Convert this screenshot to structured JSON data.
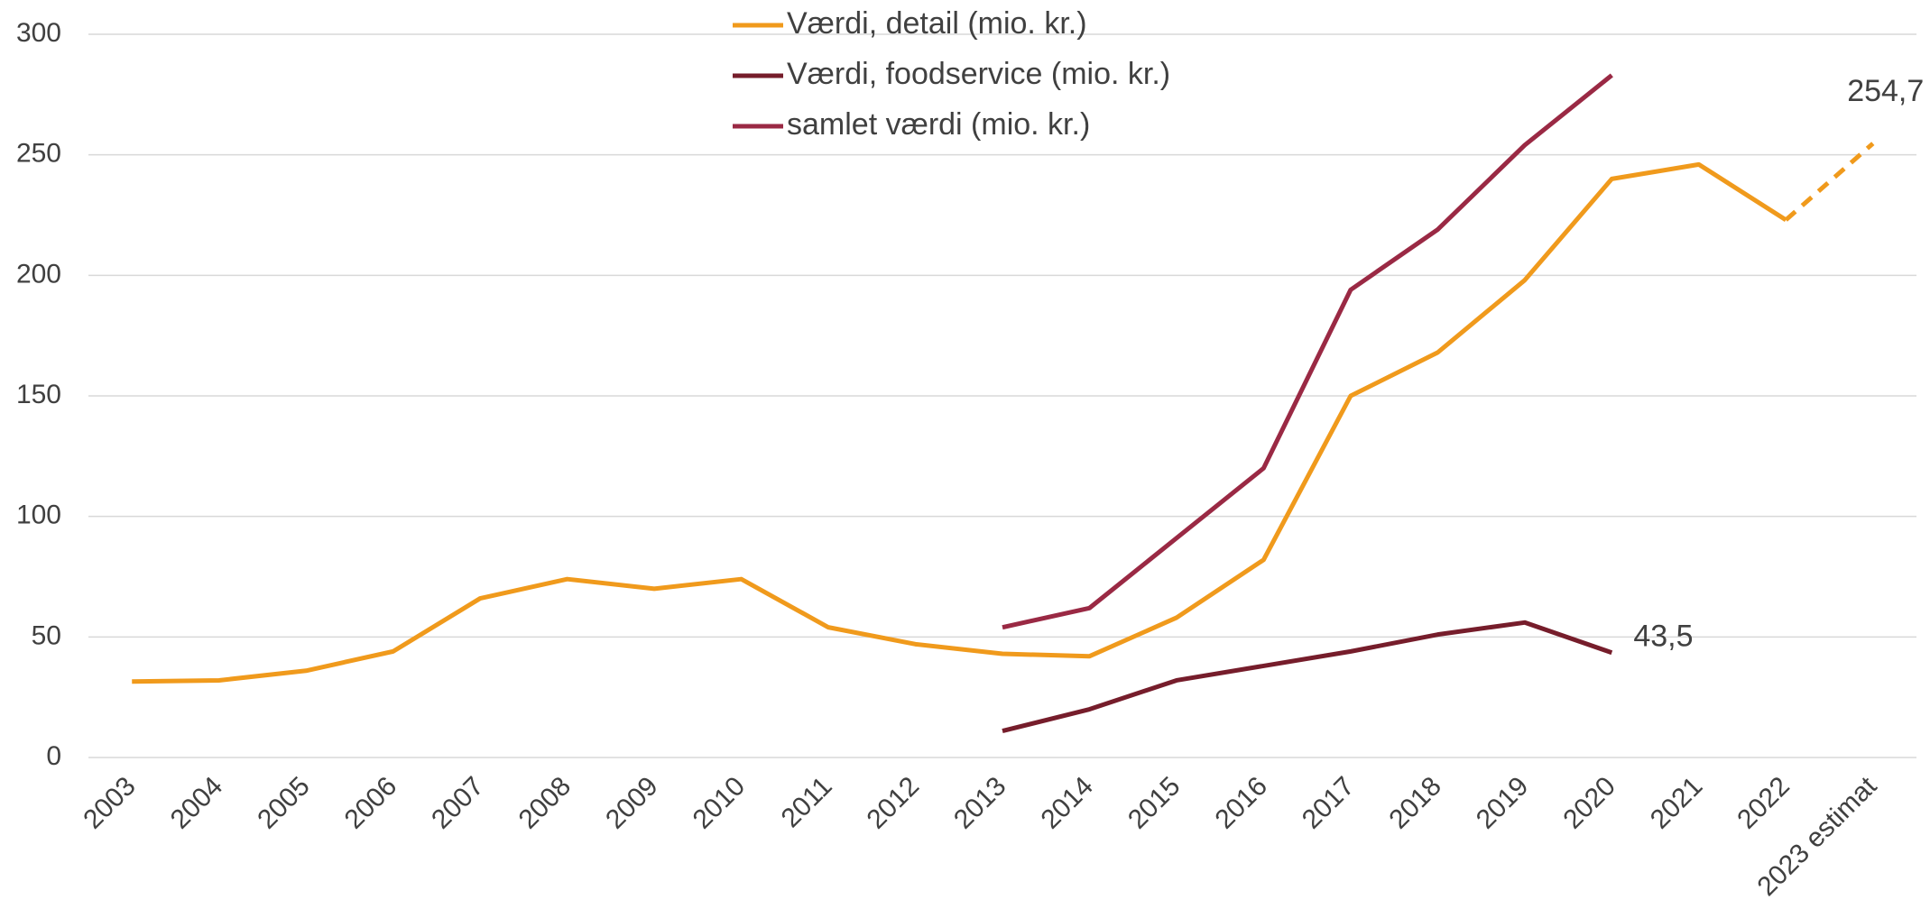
{
  "chart_data": {
    "type": "line",
    "categories": [
      "2003",
      "2004",
      "2005",
      "2006",
      "2007",
      "2008",
      "2009",
      "2010",
      "2011",
      "2012",
      "2013",
      "2014",
      "2015",
      "2016",
      "2017",
      "2018",
      "2019",
      "2020",
      "2021",
      "2022",
      "2023 estimat"
    ],
    "series": [
      {
        "name": "Værdi, detail (mio. kr.)",
        "color": "#f09a1c",
        "values": [
          31.5,
          32,
          36,
          44,
          66,
          74,
          70,
          74,
          54,
          47,
          43,
          42,
          58,
          82,
          150,
          168,
          198,
          240,
          246,
          223,
          254.7
        ],
        "value_labels": [
          null,
          null,
          null,
          null,
          null,
          null,
          null,
          null,
          null,
          null,
          null,
          null,
          null,
          null,
          null,
          null,
          null,
          null,
          null,
          null,
          "254,7"
        ],
        "last_segment_dashed": true
      },
      {
        "name": "Værdi, foodservice (mio. kr.)",
        "color": "#761d2b",
        "values": [
          null,
          null,
          null,
          null,
          null,
          null,
          null,
          null,
          null,
          null,
          11,
          20,
          32,
          38,
          44,
          51,
          56,
          43.5,
          null,
          null,
          null
        ],
        "value_labels": [
          null,
          null,
          null,
          null,
          null,
          null,
          null,
          null,
          null,
          null,
          null,
          null,
          null,
          null,
          null,
          null,
          null,
          "43,5",
          null,
          null,
          null
        ]
      },
      {
        "name": "samlet værdi (mio. kr.)",
        "color": "#9a2944",
        "values": [
          null,
          null,
          null,
          null,
          null,
          null,
          null,
          null,
          null,
          null,
          54,
          62,
          91,
          120,
          194,
          219,
          254,
          283,
          null,
          null,
          null
        ]
      }
    ],
    "ylim": [
      0,
      300
    ],
    "yticks": [
      0,
      50,
      100,
      150,
      200,
      250,
      300
    ],
    "grid": true,
    "legend": "top"
  }
}
